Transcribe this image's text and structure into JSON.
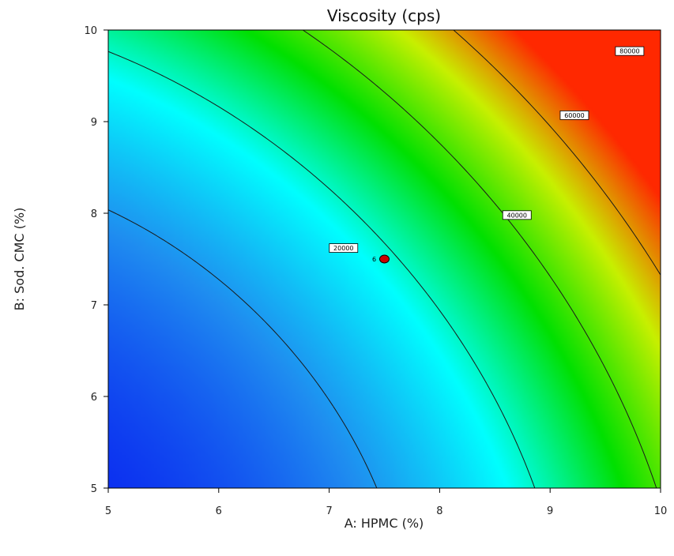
{
  "chart_data": {
    "type": "heatmap",
    "title": "Viscosity (cps)",
    "xlabel": "A: HPMC (%)",
    "ylabel": "B: Sod. CMC (%)",
    "xlim": [
      5,
      10
    ],
    "ylim": [
      5,
      10
    ],
    "x_ticks": [
      5,
      6,
      7,
      8,
      9,
      10
    ],
    "y_ticks": [
      5,
      6,
      7,
      8,
      9,
      10
    ],
    "colormap": [
      "#0a28f0",
      "#1f8ef0",
      "#00ffff",
      "#00e000",
      "#c8f000",
      "#ff2800"
    ],
    "value_range": [
      0,
      90000
    ],
    "contours": [
      {
        "level": 20000,
        "label": "20000",
        "label_at": [
          7.13,
          7.62
        ]
      },
      {
        "level": 40000,
        "label": "40000",
        "label_at": [
          8.7,
          7.98
        ]
      },
      {
        "level": 60000,
        "label": "60000",
        "label_at": [
          9.22,
          9.07
        ]
      },
      {
        "level": 80000,
        "label": "80000",
        "label_at": [
          9.72,
          9.77
        ]
      }
    ],
    "design_points": [
      {
        "x": 7.5,
        "y": 7.5,
        "label": "6",
        "color": "#cc0000"
      }
    ]
  }
}
